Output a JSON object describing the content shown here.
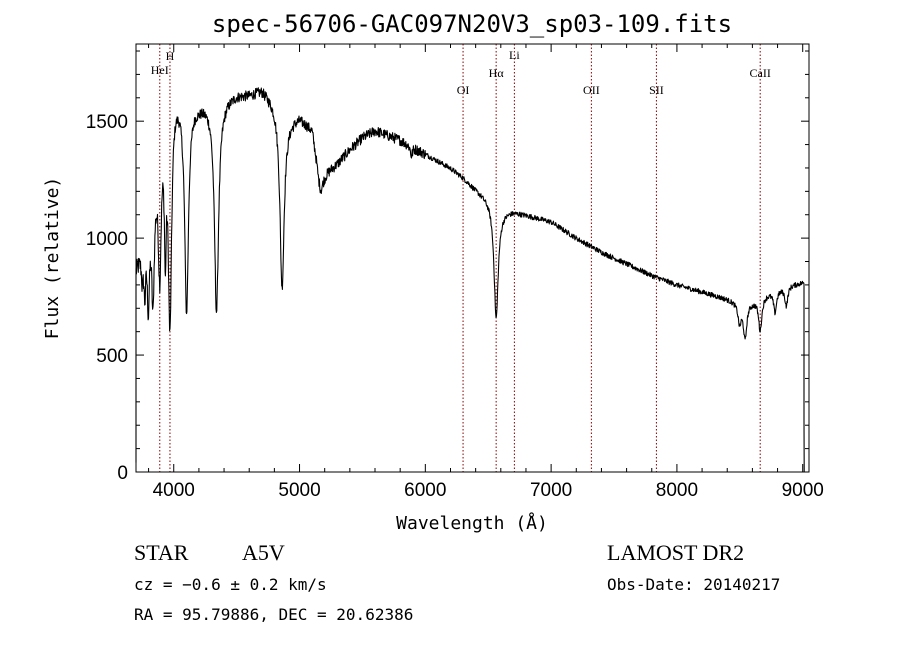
{
  "chart_data": {
    "type": "line",
    "title": "spec-56706-GAC097N20V3_sp03-109.fits",
    "xlabel": "Wavelength (Å)",
    "ylabel": "Flux (relative)",
    "xlim": [
      3700,
      9050
    ],
    "ylim": [
      0,
      1830
    ],
    "xticks": [
      4000,
      5000,
      6000,
      7000,
      8000,
      9000
    ],
    "yticks": [
      0,
      500,
      1000,
      1500
    ],
    "grid": false,
    "series": [
      {
        "continuum": {
          "x": [
            3700,
            3800,
            3900,
            4000,
            4100,
            4200,
            4300,
            4400,
            4500,
            4600,
            4700,
            4800,
            4900,
            5000,
            5100,
            5150,
            5200,
            5300,
            5400,
            5500,
            5600,
            5700,
            5800,
            5900,
            6000,
            6100,
            6200,
            6300,
            6400,
            6500,
            6600,
            6700,
            6800,
            7000,
            7200,
            7400,
            7600,
            7800,
            8000,
            8200,
            8400,
            8500,
            8600,
            8700,
            8800,
            8900,
            9000,
            9010
          ],
          "y": [
            880,
            1060,
            1490,
            1650,
            1600,
            1580,
            1590,
            1600,
            1620,
            1620,
            1640,
            1590,
            1510,
            1520,
            1470,
            1300,
            1280,
            1320,
            1380,
            1430,
            1460,
            1440,
            1420,
            1390,
            1360,
            1330,
            1300,
            1260,
            1210,
            1170,
            1120,
            1115,
            1100,
            1070,
            1000,
            940,
            890,
            840,
            800,
            770,
            740,
            720,
            730,
            760,
            780,
            800,
            810,
            810
          ]
        },
        "absorption_lines": [
          {
            "x": 3750,
            "depth": 120,
            "width": 8
          },
          {
            "x": 3770,
            "depth": 200,
            "width": 8
          },
          {
            "x": 3798,
            "depth": 300,
            "width": 10
          },
          {
            "x": 3835,
            "depth": 450,
            "width": 12
          },
          {
            "x": 3889,
            "depth": 550,
            "width": 14
          },
          {
            "x": 3933,
            "depth": 500,
            "width": 8
          },
          {
            "x": 3970,
            "depth": 950,
            "width": 16
          },
          {
            "x": 4102,
            "depth": 900,
            "width": 18
          },
          {
            "x": 4340,
            "depth": 900,
            "width": 20
          },
          {
            "x": 4861,
            "depth": 750,
            "width": 20
          },
          {
            "x": 5170,
            "depth": 80,
            "width": 20
          },
          {
            "x": 5890,
            "depth": 40,
            "width": 10
          },
          {
            "x": 6563,
            "depth": 480,
            "width": 20
          },
          {
            "x": 8498,
            "depth": 80,
            "width": 14
          },
          {
            "x": 8542,
            "depth": 150,
            "width": 16
          },
          {
            "x": 8662,
            "depth": 140,
            "width": 16
          },
          {
            "x": 8780,
            "depth": 90,
            "width": 14
          },
          {
            "x": 8870,
            "depth": 80,
            "width": 14
          }
        ]
      }
    ],
    "reference_lines": [
      {
        "label": "HeI",
        "x": 3889
      },
      {
        "label": "H",
        "x": 3970
      },
      {
        "label": "OI",
        "x": 6300
      },
      {
        "label": "Hα",
        "x": 6563
      },
      {
        "label": "Li",
        "x": 6708
      },
      {
        "label": "OII",
        "x": 7320
      },
      {
        "label": "SII",
        "x": 7837
      },
      {
        "label": "CaII",
        "x": 8662
      }
    ],
    "reference_line_color": "#8b0000",
    "line_color": "#000000"
  },
  "info": {
    "object_class": "STAR",
    "subclass": "A5V",
    "survey": "LAMOST DR2",
    "redshift": "cz = −0.6 ± 0.2 km/s",
    "obs_date": "Obs-Date: 20140217",
    "coords": "RA =  95.79886, DEC =  20.62386"
  }
}
